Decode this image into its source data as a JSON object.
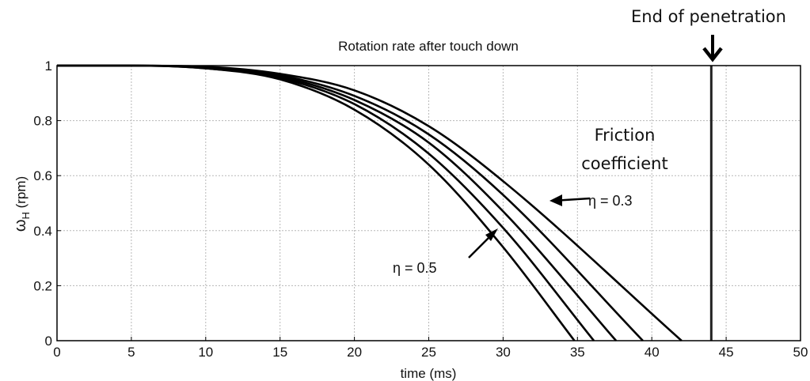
{
  "chart_data": {
    "type": "line",
    "title": "Rotation rate after touch down",
    "xlabel": "time (ms)",
    "ylabel_symbol": "ω",
    "ylabel_subscript": "H",
    "ylabel_unit": "(rpm)",
    "xlim": [
      0,
      50
    ],
    "ylim": [
      0,
      1
    ],
    "xticks": [
      "0",
      "5",
      "10",
      "15",
      "20",
      "25",
      "30",
      "35",
      "40",
      "45",
      "50"
    ],
    "yticks": [
      "0",
      "0.2",
      "0.4",
      "0.6",
      "0.8",
      "1"
    ],
    "grid": true,
    "series": [
      {
        "x": [
          0,
          5,
          10,
          15,
          20,
          25,
          30,
          34.8
        ],
        "y": [
          1,
          1,
          0.99,
          0.95,
          0.84,
          0.64,
          0.34,
          0
        ]
      },
      {
        "x": [
          0,
          5,
          10,
          15,
          20,
          25,
          30,
          36.1
        ],
        "y": [
          1,
          1,
          0.99,
          0.955,
          0.86,
          0.68,
          0.41,
          0
        ]
      },
      {
        "x": [
          0,
          5,
          10,
          15,
          20,
          25,
          30,
          37.6
        ],
        "y": [
          1,
          1,
          0.993,
          0.96,
          0.875,
          0.72,
          0.47,
          0
        ]
      },
      {
        "x": [
          0,
          5,
          10,
          15,
          20,
          25,
          30,
          39.4
        ],
        "y": [
          1,
          1,
          0.995,
          0.965,
          0.89,
          0.75,
          0.53,
          0
        ]
      },
      {
        "x": [
          0,
          5,
          10,
          15,
          20,
          25,
          30,
          42.0
        ],
        "y": [
          1,
          1,
          0.996,
          0.97,
          0.91,
          0.78,
          0.58,
          0
        ]
      }
    ],
    "vline_x": 44,
    "annotations": {
      "end_label": "End of penetration",
      "friction_line1": "Friction",
      "friction_line2": "coefficient",
      "eta_high": "η = 0.3",
      "eta_low": "η = 0.5"
    }
  }
}
